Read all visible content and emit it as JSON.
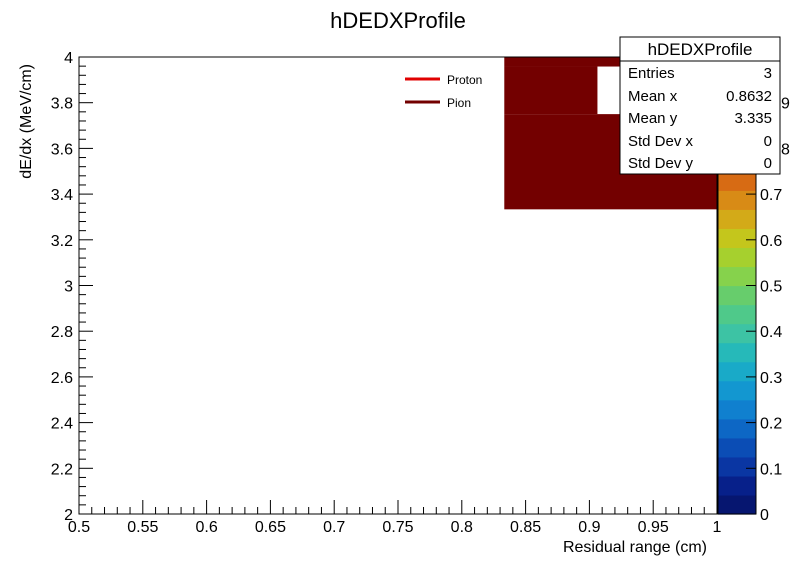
{
  "chart_data": {
    "type": "heatmap",
    "title": "hDEDXProfile",
    "xlabel": "Residual range (cm)",
    "ylabel": "dE/dx (MeV/cm)",
    "xlim": [
      0.5,
      1.0
    ],
    "ylim": [
      2.0,
      4.0
    ],
    "x_ticks": [
      "0.5",
      "0.55",
      "0.6",
      "0.65",
      "0.7",
      "0.75",
      "0.8",
      "0.85",
      "0.9",
      "0.95",
      "1"
    ],
    "x_tick_values": [
      0.5,
      0.55,
      0.6,
      0.65,
      0.7,
      0.75,
      0.8,
      0.85,
      0.9,
      0.95,
      1.0
    ],
    "y_ticks": [
      "2",
      "2.2",
      "2.4",
      "2.6",
      "2.8",
      "3",
      "3.2",
      "3.4",
      "3.6",
      "3.8",
      "4"
    ],
    "y_tick_values": [
      2.0,
      2.2,
      2.4,
      2.6,
      2.8,
      3.0,
      3.2,
      3.4,
      3.6,
      3.8,
      4.0
    ],
    "cells": [
      {
        "x0": 0.8333,
        "x1": 1.0,
        "y0": 3.3333,
        "y1": 3.75,
        "value": 1
      },
      {
        "x0": 0.8333,
        "x1": 0.9063,
        "y0": 3.75,
        "y1": 3.9583,
        "value": 1
      },
      {
        "x0": 0.8333,
        "x1": 1.0,
        "y0": 3.9583,
        "y1": 4.0,
        "value": 1
      },
      {
        "x0": 0.9063,
        "x1": 1.0,
        "y0": 3.75,
        "y1": 3.9583,
        "value": 0
      }
    ],
    "colorbar": {
      "min": 0,
      "max": 1,
      "tick_labels": [
        "0",
        "0.1",
        "0.2",
        "0.3",
        "0.4",
        "0.5",
        "0.6",
        "0.7"
      ],
      "tick_values": [
        0,
        0.1,
        0.2,
        0.3,
        0.4,
        0.5,
        0.6,
        0.7
      ],
      "partial_labels": [
        "8",
        "9"
      ],
      "colors": [
        "#061670",
        "#07208a",
        "#0a36a3",
        "#0b4db5",
        "#0d67c5",
        "#1080cf",
        "#1397d0",
        "#19aac8",
        "#26b9b9",
        "#3dc3a4",
        "#4fc98a",
        "#67cd6c",
        "#86d24c",
        "#a6d02e",
        "#c4c61c",
        "#d3aa18",
        "#d88b16",
        "#d76b14",
        "#c95112",
        "#b53a10",
        "#a1240d",
        "#8e120a",
        "#7d0707",
        "#730000"
      ]
    },
    "legend": {
      "position": "top-right",
      "entries": [
        {
          "label": "Proton",
          "color": "#e00000"
        },
        {
          "label": "Pion",
          "color": "#730000"
        }
      ]
    }
  },
  "stats": {
    "title": "hDEDXProfile",
    "rows": [
      {
        "label": "Entries",
        "value": "3"
      },
      {
        "label": "Mean x",
        "value": "0.8632"
      },
      {
        "label": "Mean y",
        "value": "3.335"
      },
      {
        "label": "Std Dev x",
        "value": "0"
      },
      {
        "label": "Std Dev y",
        "value": "0"
      }
    ]
  },
  "colors": {
    "fill_high": "#730000",
    "frame": "#000000",
    "background": "#ffffff"
  }
}
